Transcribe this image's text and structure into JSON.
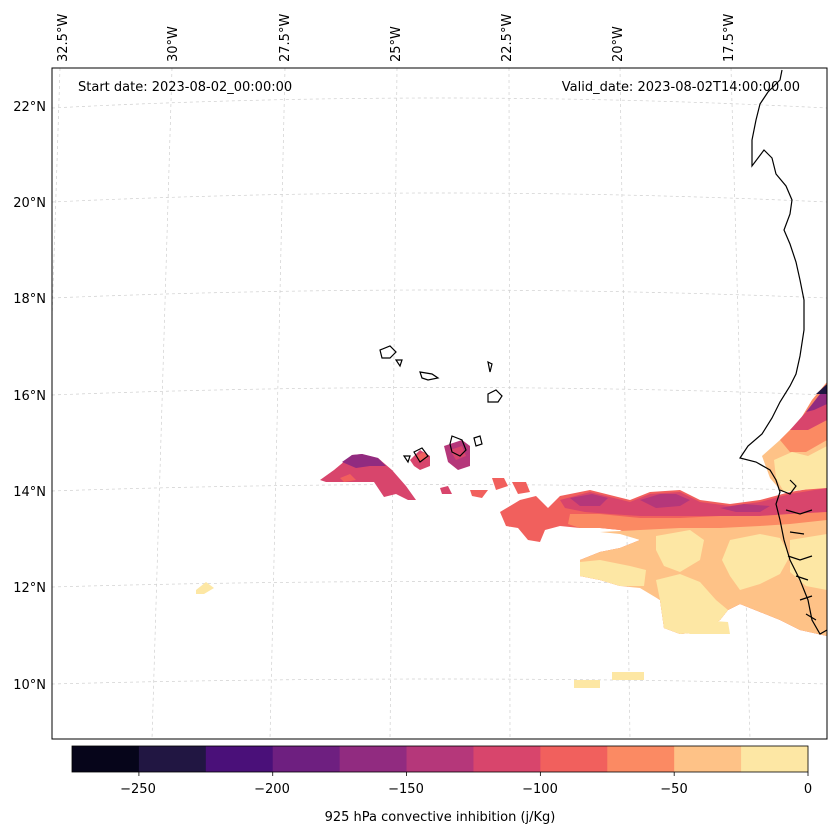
{
  "map": {
    "start_date": "Start date: 2023-08-02_00:00:00",
    "valid_date": "Valid_date: 2023-08-02T14:00:00.00",
    "lon_ticks": [
      "32.5°W",
      "30°W",
      "27.5°W",
      "25°W",
      "22.5°W",
      "20°W",
      "17.5°W"
    ],
    "lat_ticks": [
      "22°N",
      "20°N",
      "18°N",
      "16°N",
      "14°N",
      "12°N",
      "10°N"
    ],
    "variable": "925 hPa convective inhibition"
  },
  "colorbar": {
    "label": "925 hPa convective inhibition (j/Kg)",
    "tick_labels": [
      "−250",
      "−200",
      "−150",
      "−100",
      "−50",
      "0"
    ],
    "levels": [
      -275,
      -250,
      -225,
      -200,
      -175,
      -150,
      -125,
      -100,
      -75,
      -50,
      -25,
      0
    ],
    "colors": [
      "#06051a",
      "#211642",
      "#4a1079",
      "#6e1f80",
      "#912b80",
      "#b5377a",
      "#d8456c",
      "#f1605d",
      "#fb8a63",
      "#fec287",
      "#fde7a4"
    ]
  }
}
